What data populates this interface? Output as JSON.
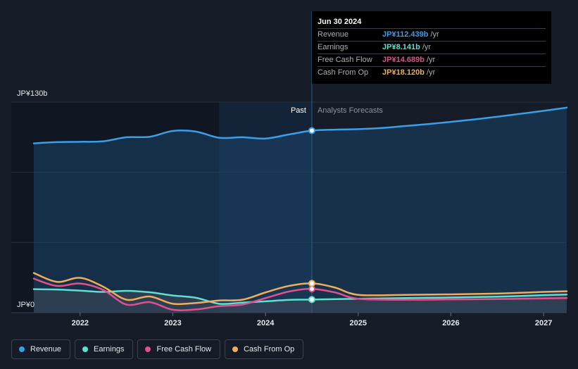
{
  "tooltip": {
    "date": "Jun 30 2024",
    "rows": [
      {
        "label": "Revenue",
        "value": "JP¥112.439b",
        "unit": "/yr",
        "color": "#3b9ee8"
      },
      {
        "label": "Earnings",
        "value": "JP¥8.141b",
        "unit": "/yr",
        "color": "#5ce0cf"
      },
      {
        "label": "Free Cash Flow",
        "value": "JP¥14.689b",
        "unit": "/yr",
        "color": "#e1508d"
      },
      {
        "label": "Cash From Op",
        "value": "JP¥18.120b",
        "unit": "/yr",
        "color": "#f0ad5c"
      }
    ]
  },
  "legend": [
    {
      "label": "Revenue",
      "color": "#3b9ee8"
    },
    {
      "label": "Earnings",
      "color": "#5ce0cf"
    },
    {
      "label": "Free Cash Flow",
      "color": "#e1508d"
    },
    {
      "label": "Cash From Op",
      "color": "#f0ad5c"
    }
  ],
  "chart_data": {
    "type": "line",
    "xlabel": "",
    "ylabel": "",
    "y_axis": {
      "top_label": "JP¥130b",
      "bottom_label": "JP¥0",
      "ylim": [
        0,
        130
      ]
    },
    "x_axis": {
      "ticks": [
        "2022",
        "2023",
        "2024",
        "2025",
        "2026",
        "2027"
      ],
      "xlim": [
        2021.5,
        2027.25
      ]
    },
    "regions": {
      "past_label": "Past",
      "forecast_label": "Analysts Forecasts",
      "split_x": 2024.5,
      "highlight_start": 2023.5
    },
    "grid": true,
    "series": [
      {
        "name": "Revenue",
        "color": "#3b9ee8",
        "area": true,
        "x": [
          2021.5,
          2021.75,
          2022.0,
          2022.25,
          2022.5,
          2022.75,
          2023.0,
          2023.25,
          2023.5,
          2023.75,
          2024.0,
          2024.25,
          2024.5,
          2024.75,
          2025.0,
          2025.25,
          2025.5,
          2025.75,
          2026.0,
          2026.25,
          2026.5,
          2026.75,
          2027.0,
          2027.25
        ],
        "values": [
          104.5,
          105.3,
          105.5,
          105.8,
          108.3,
          108.6,
          112.2,
          111.8,
          108.0,
          108.3,
          107.5,
          110.0,
          112.4,
          113.0,
          113.3,
          114.0,
          115.2,
          116.4,
          117.8,
          119.3,
          121.0,
          122.8,
          124.6,
          126.6
        ]
      },
      {
        "name": "Earnings",
        "color": "#5ce0cf",
        "area": true,
        "x": [
          2021.5,
          2021.75,
          2022.0,
          2022.25,
          2022.5,
          2022.75,
          2023.0,
          2023.25,
          2023.5,
          2023.75,
          2024.0,
          2024.25,
          2024.5,
          2025.0,
          2025.5,
          2026.0,
          2026.5,
          2027.0,
          2027.25
        ],
        "values": [
          14.5,
          14.3,
          13.6,
          12.8,
          13.5,
          12.6,
          10.6,
          9.2,
          5.5,
          6.2,
          7.0,
          7.9,
          8.1,
          8.6,
          9.0,
          9.4,
          9.9,
          10.8,
          11.2
        ]
      },
      {
        "name": "Free Cash Flow",
        "color": "#e1508d",
        "area": false,
        "x": [
          2021.5,
          2021.75,
          2022.0,
          2022.25,
          2022.5,
          2022.75,
          2023.0,
          2023.25,
          2023.5,
          2023.75,
          2024.0,
          2024.25,
          2024.5,
          2024.75,
          2025.0,
          2025.5,
          2026.0,
          2026.5,
          2027.0,
          2027.25
        ],
        "values": [
          21.0,
          16.5,
          18.0,
          14.0,
          5.0,
          6.5,
          1.8,
          2.0,
          4.0,
          5.0,
          9.0,
          13.0,
          14.7,
          12.5,
          8.6,
          8.0,
          8.2,
          8.4,
          8.8,
          9.0
        ]
      },
      {
        "name": "Cash From Op",
        "color": "#f0ad5c",
        "area": false,
        "x": [
          2021.5,
          2021.75,
          2022.0,
          2022.25,
          2022.5,
          2022.75,
          2023.0,
          2023.25,
          2023.5,
          2023.75,
          2024.0,
          2024.25,
          2024.5,
          2024.75,
          2025.0,
          2025.5,
          2026.0,
          2026.5,
          2027.0,
          2027.25
        ],
        "values": [
          24.5,
          19.0,
          21.5,
          16.0,
          8.0,
          10.0,
          5.5,
          6.0,
          7.5,
          8.0,
          12.5,
          16.5,
          18.1,
          15.5,
          11.0,
          11.0,
          11.3,
          11.8,
          12.8,
          13.2
        ]
      }
    ]
  }
}
